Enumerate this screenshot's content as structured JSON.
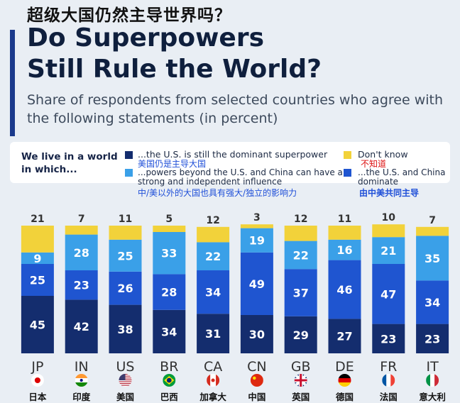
{
  "header": {
    "cn_title": "超级大国仍然主导世界吗？",
    "title_line1": "Do Superpowers",
    "title_line2": "Still Rule the World?",
    "subtitle": "Share of respondents from selected countries who agree with the following statements (in percent)"
  },
  "legend": {
    "intro": "We live in a world in which...",
    "items": [
      {
        "text": "...the U.S. is still the dominant superpower",
        "cn": "美国仍是主导大国",
        "color": "#142d6e"
      },
      {
        "text": "...powers beyond the U.S. and China can have a strong and independent influence",
        "cn": "中/美以外的大国也具有强大/独立的影响力",
        "color": "#3aa0e8"
      },
      {
        "text": "Don't know",
        "cn": "不知道",
        "color": "#f2d23a"
      },
      {
        "text": "...the U.S. and China dominate",
        "cn": "由中美共同主导",
        "color": "#1f55d0"
      }
    ]
  },
  "chart_data": {
    "type": "bar",
    "stacked": true,
    "categories": [
      "JP",
      "IN",
      "US",
      "BR",
      "CA",
      "CN",
      "GB",
      "DE",
      "FR",
      "IT"
    ],
    "countries_cn": [
      "日本",
      "印度",
      "美国",
      "巴西",
      "加拿大",
      "中国",
      "英国",
      "德国",
      "法国",
      "意大利"
    ],
    "series": [
      {
        "name": "...the U.S. is still the dominant superpower",
        "color": "#142d6e",
        "values": [
          45,
          42,
          38,
          34,
          31,
          30,
          29,
          27,
          23,
          23
        ]
      },
      {
        "name": "...the U.S. and China dominate",
        "color": "#1f55d0",
        "values": [
          25,
          23,
          26,
          28,
          34,
          49,
          37,
          46,
          47,
          34
        ]
      },
      {
        "name": "...powers beyond the U.S. and China can have a strong and independent influence",
        "color": "#3aa0e8",
        "values": [
          9,
          28,
          25,
          33,
          22,
          19,
          22,
          16,
          21,
          35
        ]
      },
      {
        "name": "Don't know",
        "color": "#f2d23a",
        "values": [
          21,
          7,
          11,
          5,
          12,
          3,
          12,
          11,
          10,
          7
        ]
      }
    ],
    "ylim": [
      0,
      100
    ],
    "grid": false,
    "legend_position": "top"
  },
  "flags": [
    {
      "icon": "flag-japan-icon"
    },
    {
      "icon": "flag-india-icon"
    },
    {
      "icon": "flag-usa-icon"
    },
    {
      "icon": "flag-brazil-icon"
    },
    {
      "icon": "flag-canada-icon"
    },
    {
      "icon": "flag-china-icon"
    },
    {
      "icon": "flag-uk-icon"
    },
    {
      "icon": "flag-germany-icon"
    },
    {
      "icon": "flag-france-icon"
    },
    {
      "icon": "flag-italy-icon"
    }
  ]
}
